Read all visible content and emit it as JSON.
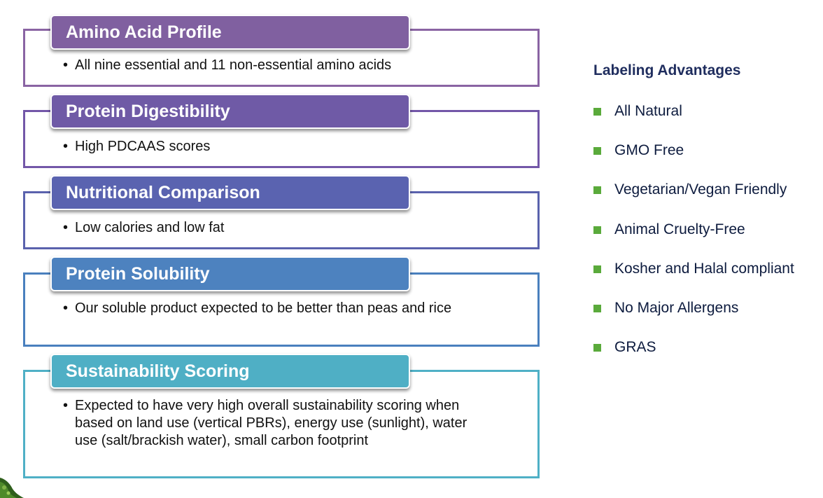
{
  "cards": [
    {
      "title": "Amino Acid Profile",
      "bullet": "All nine essential and 11 non-essential amino acids",
      "color": "#8060a0",
      "border": "#8a64a3"
    },
    {
      "title": "Protein Digestibility",
      "bullet": "High PDCAAS scores",
      "color": "#6f5aa6",
      "border": "#7357a8"
    },
    {
      "title": "Nutritional Comparison",
      "bullet": "Low calories and low fat",
      "color": "#5a63b0",
      "border": "#5a62ad"
    },
    {
      "title": "Protein Solubility",
      "bullet": "Our soluble product expected to be better than peas and rice",
      "color": "#4d82bf",
      "border": "#4a80be"
    },
    {
      "title": "Sustainability Scoring",
      "bullet": "Expected to have very high overall sustainability scoring when based on land use (vertical PBRs), energy use (sunlight), water use (salt/brackish water), small carbon footprint",
      "color": "#4fafc5",
      "border": "#4fb0c6"
    }
  ],
  "labeling": {
    "title": "Labeling Advantages",
    "bullet_color": "#5aaa3b",
    "items": [
      "All Natural",
      "GMO Free",
      "Vegetarian/Vegan Friendly",
      "Animal Cruelty-Free",
      "Kosher and Halal compliant",
      "No Major Allergens",
      "GRAS"
    ]
  },
  "bullet_glyph": "•"
}
